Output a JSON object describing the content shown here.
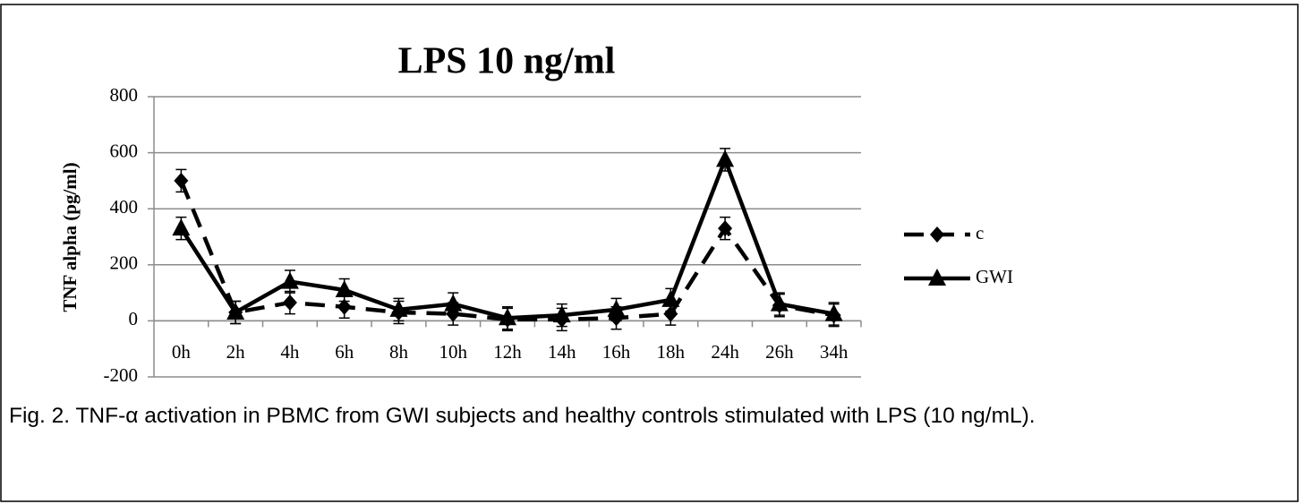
{
  "chart_data": {
    "type": "line",
    "title": "LPS 10 ng/ml",
    "y_label": "TNF alpha (pg/ml)",
    "categories": [
      "0h",
      "2h",
      "4h",
      "6h",
      "8h",
      "10h",
      "12h",
      "14h",
      "16h",
      "18h",
      "24h",
      "26h",
      "34h"
    ],
    "series": [
      {
        "name": "c",
        "color": "#000000",
        "line_style": "dashed",
        "marker": "diamond",
        "values": [
          500,
          30,
          65,
          50,
          30,
          25,
          5,
          5,
          10,
          25,
          330,
          55,
          20
        ],
        "errors": [
          40,
          40,
          40,
          40,
          40,
          40,
          40,
          40,
          40,
          40,
          40,
          40,
          40
        ]
      },
      {
        "name": "GWI",
        "color": "#000000",
        "line_style": "solid",
        "marker": "triangle",
        "values": [
          330,
          30,
          140,
          110,
          40,
          60,
          10,
          20,
          40,
          75,
          575,
          60,
          25
        ],
        "errors": [
          40,
          40,
          40,
          40,
          40,
          40,
          40,
          40,
          40,
          40,
          40,
          40,
          40
        ]
      }
    ],
    "ylim": [
      -200,
      800
    ],
    "yticks": [
      -200,
      0,
      200,
      400,
      600,
      800
    ],
    "grid": true,
    "legend": "right"
  },
  "caption": "Fig. 2. TNF-α activation in PBMC from GWI subjects and healthy controls stimulated with LPS (10 ng/mL)."
}
